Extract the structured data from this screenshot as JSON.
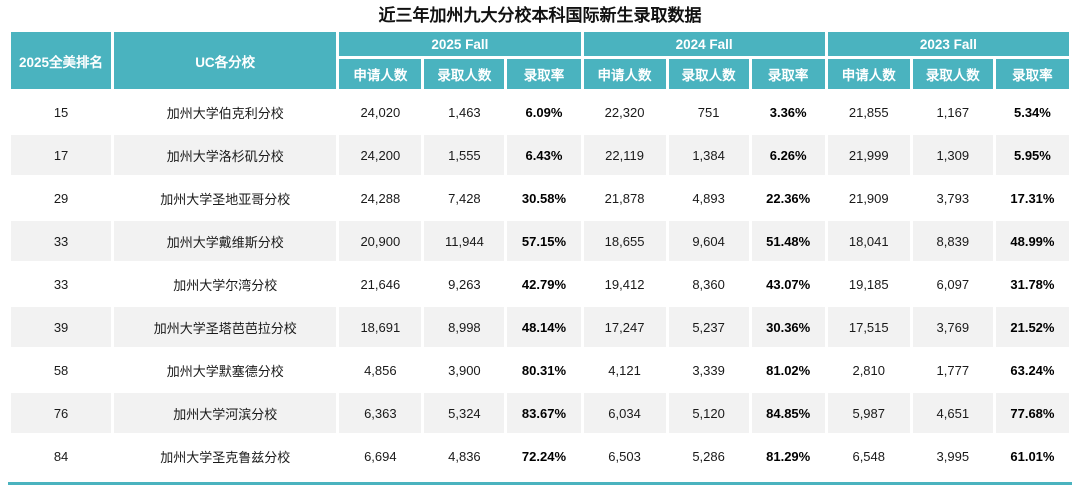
{
  "page_title": "近三年加州九大分校本科国际新生录取数据",
  "colors": {
    "header_bg": "#4ab3bf",
    "header_text": "#ffffff",
    "row_alt_bg": "#f2f2f2",
    "row_bg": "#ffffff",
    "bottom_rule": "#4ab3bf",
    "rate_text": "#000000"
  },
  "chart_data": {
    "type": "table",
    "title": "近三年加州九大分校本科国际新生录取数据",
    "header": {
      "rank": "2025全美排名",
      "school": "UC各分校",
      "year_groups": [
        "2025 Fall",
        "2024 Fall",
        "2023 Fall"
      ],
      "sub_columns": [
        "申请人数",
        "录取人数",
        "录取率"
      ]
    },
    "rows": [
      {
        "rank": "15",
        "school": "加州大学伯克利分校",
        "stats": [
          "24,020",
          "1,463",
          "6.09%",
          "22,320",
          "751",
          "3.36%",
          "21,855",
          "1,167",
          "5.34%"
        ]
      },
      {
        "rank": "17",
        "school": "加州大学洛杉矶分校",
        "stats": [
          "24,200",
          "1,555",
          "6.43%",
          "22,119",
          "1,384",
          "6.26%",
          "21,999",
          "1,309",
          "5.95%"
        ]
      },
      {
        "rank": "29",
        "school": "加州大学圣地亚哥分校",
        "stats": [
          "24,288",
          "7,428",
          "30.58%",
          "21,878",
          "4,893",
          "22.36%",
          "21,909",
          "3,793",
          "17.31%"
        ]
      },
      {
        "rank": "33",
        "school": "加州大学戴维斯分校",
        "stats": [
          "20,900",
          "11,944",
          "57.15%",
          "18,655",
          "9,604",
          "51.48%",
          "18,041",
          "8,839",
          "48.99%"
        ]
      },
      {
        "rank": "33",
        "school": "加州大学尔湾分校",
        "stats": [
          "21,646",
          "9,263",
          "42.79%",
          "19,412",
          "8,360",
          "43.07%",
          "19,185",
          "6,097",
          "31.78%"
        ]
      },
      {
        "rank": "39",
        "school": "加州大学圣塔芭芭拉分校",
        "stats": [
          "18,691",
          "8,998",
          "48.14%",
          "17,247",
          "5,237",
          "30.36%",
          "17,515",
          "3,769",
          "21.52%"
        ]
      },
      {
        "rank": "58",
        "school": "加州大学默塞德分校",
        "stats": [
          "4,856",
          "3,900",
          "80.31%",
          "4,121",
          "3,339",
          "81.02%",
          "2,810",
          "1,777",
          "63.24%"
        ]
      },
      {
        "rank": "76",
        "school": "加州大学河滨分校",
        "stats": [
          "6,363",
          "5,324",
          "83.67%",
          "6,034",
          "5,120",
          "84.85%",
          "5,987",
          "4,651",
          "77.68%"
        ]
      },
      {
        "rank": "84",
        "school": "加州大学圣克鲁兹分校",
        "stats": [
          "6,694",
          "4,836",
          "72.24%",
          "6,503",
          "5,286",
          "81.29%",
          "6,548",
          "3,995",
          "61.01%"
        ]
      }
    ]
  }
}
